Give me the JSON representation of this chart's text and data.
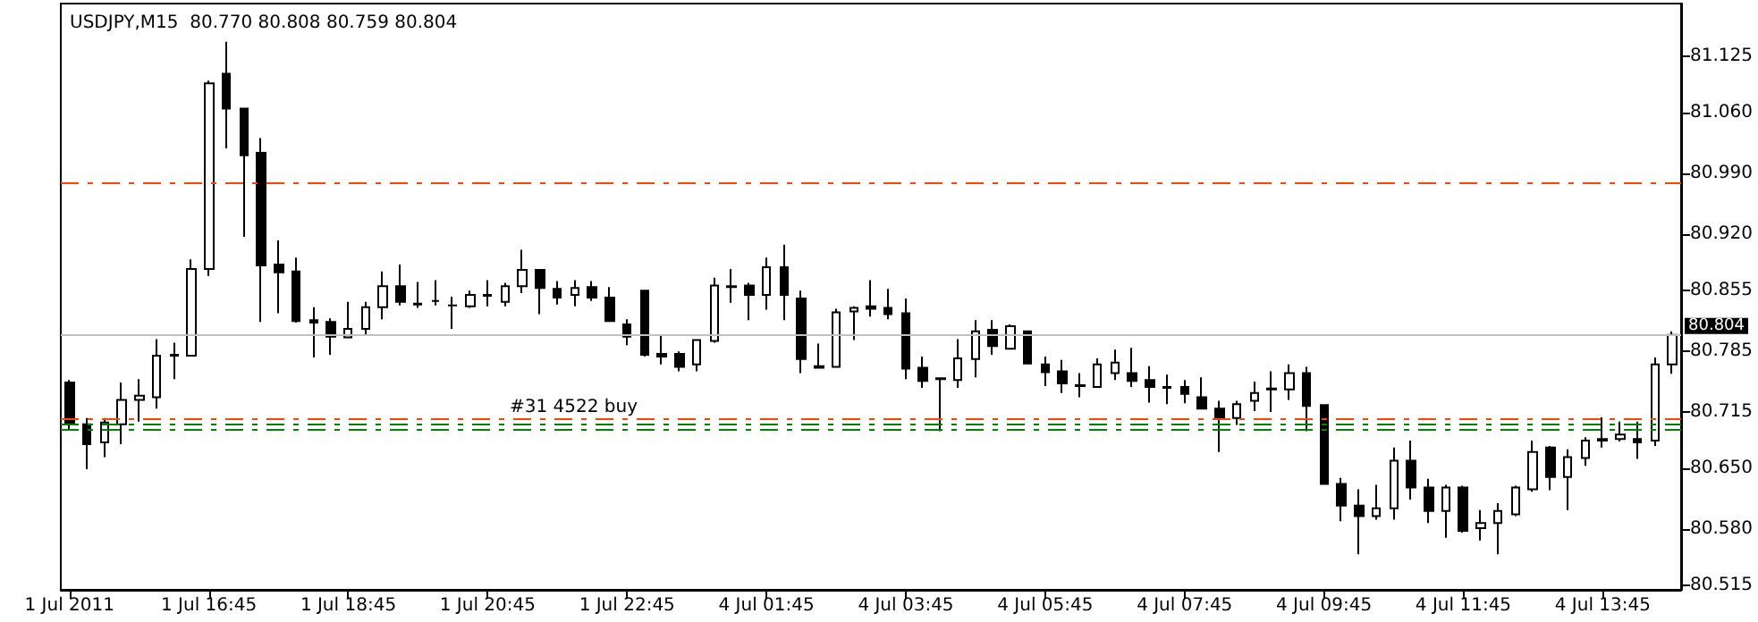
{
  "chart_data": {
    "type": "candlestick",
    "title": "USDJPY,M15  80.770 80.808 80.759 80.804",
    "categories": [
      "1 Jul 2011",
      null,
      null,
      null,
      null,
      null,
      null,
      null,
      "1 Jul 16:45",
      null,
      null,
      null,
      null,
      null,
      null,
      null,
      "1 Jul 18:45",
      null,
      null,
      null,
      null,
      null,
      null,
      null,
      "1 Jul 20:45",
      null,
      null,
      null,
      null,
      null,
      null,
      null,
      "1 Jul 22:45",
      null,
      null,
      null,
      null,
      null,
      null,
      null,
      "4 Jul 01:45",
      null,
      null,
      null,
      null,
      null,
      null,
      null,
      "4 Jul 03:45",
      null,
      null,
      null,
      null,
      null,
      null,
      null,
      "4 Jul 05:45",
      null,
      null,
      null,
      null,
      null,
      null,
      null,
      "4 Jul 07:45",
      null,
      null,
      null,
      null,
      null,
      null,
      null,
      "4 Jul 09:45",
      null,
      null,
      null,
      null,
      null,
      null,
      null,
      "4 Jul 11:45",
      null,
      null,
      null,
      null,
      null,
      null,
      null,
      "4 Jul 13:45",
      null,
      null,
      null,
      null
    ],
    "ohlc": [
      [
        80.749,
        80.752,
        80.695,
        80.701
      ],
      [
        80.701,
        80.708,
        80.649,
        80.678
      ],
      [
        80.68,
        80.708,
        80.663,
        80.703
      ],
      [
        80.701,
        80.749,
        80.678,
        80.729
      ],
      [
        80.729,
        80.753,
        80.704,
        80.734
      ],
      [
        80.732,
        80.799,
        80.719,
        80.78
      ],
      [
        80.78,
        80.795,
        80.753,
        80.781
      ],
      [
        80.78,
        80.891,
        80.779,
        80.88
      ],
      [
        80.88,
        81.097,
        80.872,
        81.094
      ],
      [
        81.105,
        81.142,
        81.019,
        81.065
      ],
      [
        81.065,
        81.066,
        80.917,
        81.011
      ],
      [
        81.014,
        81.031,
        80.819,
        80.884
      ],
      [
        80.885,
        80.913,
        80.829,
        80.876
      ],
      [
        80.877,
        80.893,
        80.818,
        80.82
      ],
      [
        80.821,
        80.836,
        80.778,
        80.818
      ],
      [
        80.819,
        80.823,
        80.781,
        80.802
      ],
      [
        80.801,
        80.842,
        80.8,
        80.811
      ],
      [
        80.811,
        80.842,
        80.804,
        80.836
      ],
      [
        80.836,
        80.877,
        80.822,
        80.86
      ],
      [
        80.86,
        80.885,
        80.838,
        80.842
      ],
      [
        80.84,
        80.865,
        80.835,
        80.839
      ],
      [
        80.843,
        80.867,
        80.838,
        80.843
      ],
      [
        80.838,
        80.848,
        80.811,
        80.838
      ],
      [
        80.837,
        80.855,
        80.835,
        80.85
      ],
      [
        80.85,
        80.867,
        80.837,
        80.849
      ],
      [
        80.842,
        80.864,
        80.837,
        80.86
      ],
      [
        80.86,
        80.902,
        80.852,
        80.879
      ],
      [
        80.879,
        80.88,
        80.828,
        80.858
      ],
      [
        80.857,
        80.866,
        80.839,
        80.847
      ],
      [
        80.85,
        80.867,
        80.837,
        80.858
      ],
      [
        80.859,
        80.866,
        80.843,
        80.847
      ],
      [
        80.847,
        80.859,
        80.82,
        80.82
      ],
      [
        80.816,
        80.822,
        80.792,
        80.802
      ],
      [
        80.855,
        80.856,
        80.779,
        80.781
      ],
      [
        80.782,
        80.804,
        80.77,
        80.779
      ],
      [
        80.782,
        80.785,
        80.762,
        80.767
      ],
      [
        80.77,
        80.799,
        80.762,
        80.798
      ],
      [
        80.797,
        80.87,
        80.795,
        80.861
      ],
      [
        80.86,
        80.88,
        80.841,
        80.859
      ],
      [
        80.861,
        80.864,
        80.821,
        80.85
      ],
      [
        80.85,
        80.893,
        80.833,
        80.882
      ],
      [
        80.882,
        80.908,
        80.821,
        80.85
      ],
      [
        80.846,
        80.855,
        80.76,
        80.776
      ],
      [
        80.768,
        80.794,
        80.766,
        80.766
      ],
      [
        80.767,
        80.834,
        80.767,
        80.83
      ],
      [
        80.831,
        80.837,
        80.798,
        80.835
      ],
      [
        80.837,
        80.867,
        80.825,
        80.834
      ],
      [
        80.835,
        80.857,
        80.822,
        80.828
      ],
      [
        80.829,
        80.846,
        80.753,
        80.765
      ],
      [
        80.766,
        80.779,
        80.743,
        80.751
      ],
      [
        80.754,
        80.755,
        80.693,
        80.753
      ],
      [
        80.752,
        80.799,
        80.743,
        80.777
      ],
      [
        80.776,
        80.821,
        80.755,
        80.808
      ],
      [
        80.81,
        80.821,
        80.781,
        80.791
      ],
      [
        80.788,
        80.816,
        80.788,
        80.814
      ],
      [
        80.808,
        80.809,
        80.77,
        80.771
      ],
      [
        80.77,
        80.779,
        80.745,
        80.761
      ],
      [
        80.762,
        80.775,
        80.737,
        80.748
      ],
      [
        80.746,
        80.76,
        80.732,
        80.745
      ],
      [
        80.744,
        80.777,
        80.743,
        80.77
      ],
      [
        80.76,
        80.787,
        80.752,
        80.772
      ],
      [
        80.76,
        80.789,
        80.744,
        80.751
      ],
      [
        80.752,
        80.768,
        80.726,
        80.744
      ],
      [
        80.744,
        80.758,
        80.724,
        80.743
      ],
      [
        80.744,
        80.752,
        80.725,
        80.736
      ],
      [
        80.732,
        80.755,
        80.719,
        80.719
      ],
      [
        80.719,
        80.728,
        80.669,
        80.707
      ],
      [
        80.708,
        80.728,
        80.7,
        80.724
      ],
      [
        80.728,
        80.75,
        80.716,
        80.737
      ],
      [
        80.741,
        80.762,
        80.715,
        80.742
      ],
      [
        80.741,
        80.77,
        80.729,
        80.76
      ],
      [
        80.76,
        80.767,
        80.693,
        80.722
      ],
      [
        80.723,
        80.724,
        80.632,
        80.632
      ],
      [
        80.632,
        80.639,
        80.589,
        80.607
      ],
      [
        80.607,
        80.626,
        80.551,
        80.595
      ],
      [
        80.595,
        80.631,
        80.591,
        80.604
      ],
      [
        80.604,
        80.674,
        80.591,
        80.659
      ],
      [
        80.659,
        80.682,
        80.614,
        80.628
      ],
      [
        80.628,
        80.638,
        80.587,
        80.601
      ],
      [
        80.601,
        80.631,
        80.57,
        80.628
      ],
      [
        80.628,
        80.63,
        80.576,
        80.578
      ],
      [
        80.581,
        80.602,
        80.567,
        80.587
      ],
      [
        80.587,
        80.61,
        80.551,
        80.601
      ],
      [
        80.597,
        80.63,
        80.595,
        80.628
      ],
      [
        80.626,
        80.682,
        80.623,
        80.669
      ],
      [
        80.674,
        80.676,
        80.625,
        80.64
      ],
      [
        80.64,
        80.672,
        80.602,
        80.663
      ],
      [
        80.662,
        80.686,
        80.653,
        80.682
      ],
      [
        80.684,
        80.709,
        80.674,
        80.682
      ],
      [
        80.684,
        80.704,
        80.681,
        80.689
      ],
      [
        80.684,
        80.704,
        80.661,
        80.68
      ],
      [
        80.682,
        80.778,
        80.676,
        80.77
      ],
      [
        80.77,
        80.808,
        80.759,
        80.804
      ]
    ],
    "ylim": [
      80.51,
      81.186
    ],
    "yticks": [
      80.515,
      {
        "value": 80.58,
        "label": "80.580"
      },
      {
        "value": 80.65,
        "label": "80.650"
      },
      80.715,
      80.785,
      80.855,
      {
        "value": 80.92,
        "label": "80.920"
      },
      {
        "value": 80.99,
        "label": "80.990"
      },
      {
        "value": 81.06,
        "label": "81.060"
      },
      81.125
    ],
    "ref_lines": [
      {
        "axis": "y",
        "value": 80.979,
        "color": "#ff4500",
        "line_style": "dashed",
        "label": null
      },
      {
        "axis": "y",
        "value": 80.804,
        "color": "#c0c0c0",
        "line_style": "solid",
        "label": "80.804"
      },
      {
        "axis": "y",
        "value": 80.708,
        "color": "#ff4500",
        "line_style": "dashed",
        "label": "#31 4522 buy"
      },
      {
        "axis": "y",
        "value": 80.701,
        "color": "#008000",
        "line_style": "dashed",
        "label": null
      },
      {
        "axis": "y",
        "value": 80.694,
        "color": "#008000",
        "line_style": "dashed",
        "label": null
      }
    ],
    "grid": false
  }
}
